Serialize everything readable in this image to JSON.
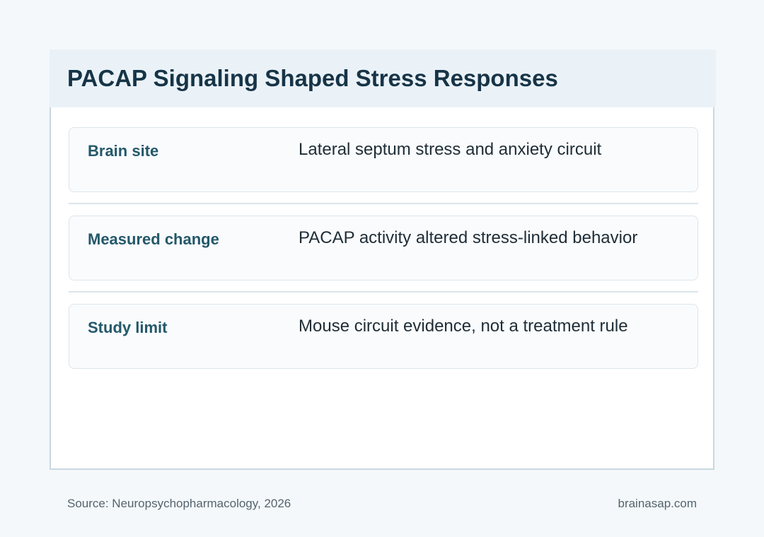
{
  "title": "PACAP Signaling Shaped Stress Responses",
  "rows": [
    {
      "label": "Brain site",
      "value": "Lateral septum stress and anxiety circuit"
    },
    {
      "label": "Measured change",
      "value": "PACAP activity altered stress-linked behavior"
    },
    {
      "label": "Study limit",
      "value": "Mouse circuit evidence, not a treatment rule"
    }
  ],
  "footer": {
    "source": "Source: Neuropsychopharmacology, 2026",
    "brand": "brainasap.com"
  },
  "colors": {
    "background": "#f4f8fb",
    "header_band": "#eaf2f8",
    "title": "#173447",
    "label": "#24586a",
    "value": "#1f2d36"
  }
}
